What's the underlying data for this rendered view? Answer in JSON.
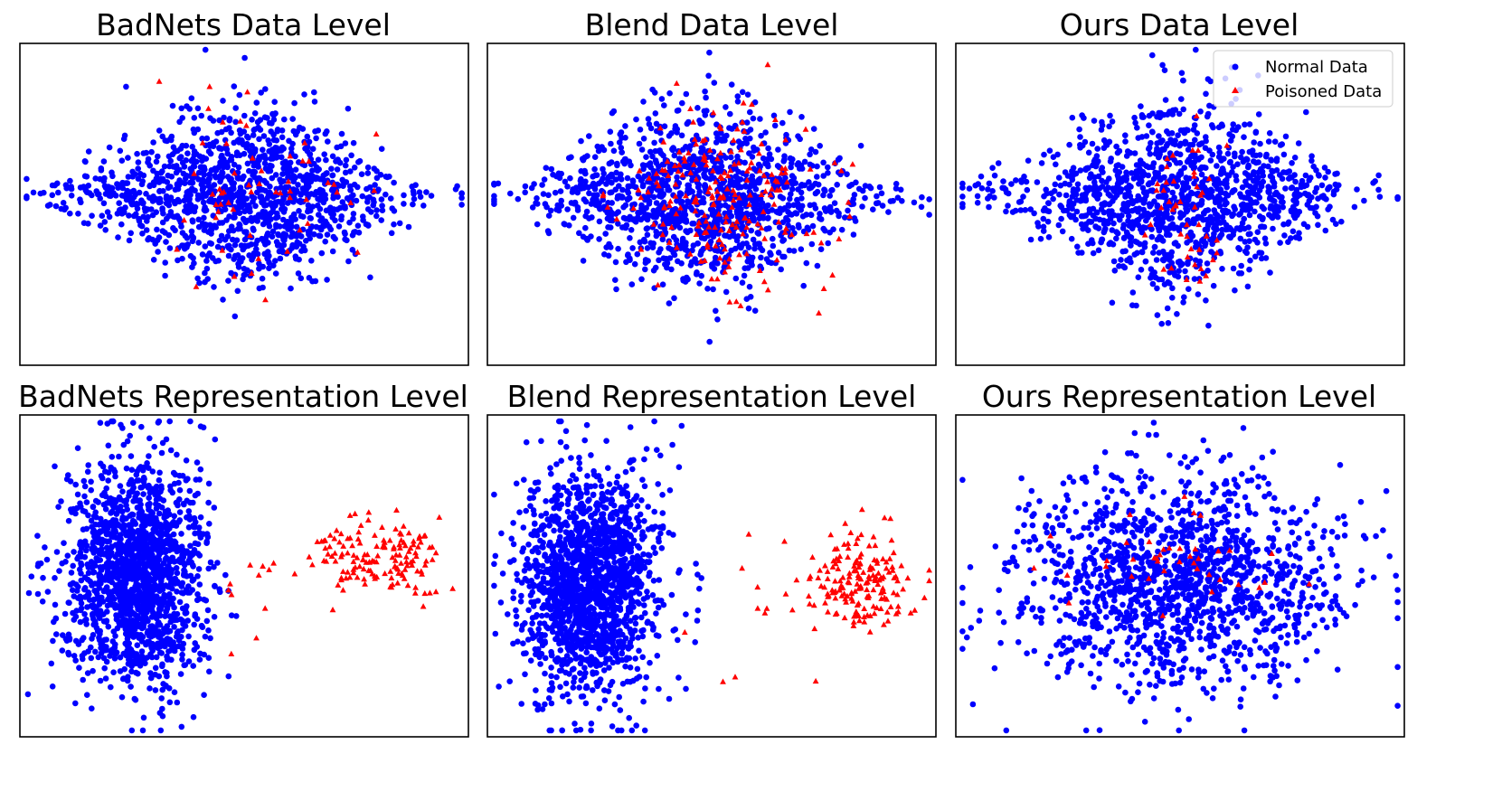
{
  "chart_data": [
    {
      "type": "scatter",
      "title": "BadNets Data Level",
      "xlabel": "",
      "ylabel": "",
      "axes_visible": false,
      "normal": {
        "count": 1300,
        "cx": 0.5,
        "cy": 0.47,
        "sx": 0.17,
        "sy": 0.155,
        "shape": "diamond"
      },
      "poisoned": {
        "count": 55,
        "cx": 0.52,
        "cy": 0.46,
        "sx": 0.12,
        "sy": 0.14
      }
    },
    {
      "type": "scatter",
      "title": "Blend Data Level",
      "xlabel": "",
      "ylabel": "",
      "axes_visible": false,
      "normal": {
        "count": 1300,
        "cx": 0.48,
        "cy": 0.48,
        "sx": 0.17,
        "sy": 0.16,
        "shape": "diamond"
      },
      "poisoned": {
        "count": 200,
        "cx": 0.52,
        "cy": 0.47,
        "sx": 0.12,
        "sy": 0.13
      }
    },
    {
      "type": "scatter",
      "title": "Ours Data Level",
      "xlabel": "",
      "ylabel": "",
      "axes_visible": false,
      "legend": {
        "placement": "top-right",
        "entries": [
          "Normal Data",
          "Poisoned Data"
        ]
      },
      "normal": {
        "count": 1300,
        "cx": 0.5,
        "cy": 0.47,
        "sx": 0.17,
        "sy": 0.155,
        "shape": "diamond"
      },
      "poisoned": {
        "count": 45,
        "cx": 0.51,
        "cy": 0.52,
        "sx": 0.05,
        "sy": 0.13
      }
    },
    {
      "type": "scatter",
      "title": "BadNets Representation Level",
      "xlabel": "",
      "ylabel": "",
      "axes_visible": false,
      "normal": {
        "count": 1600,
        "cx": 0.26,
        "cy": 0.5,
        "sx": 0.075,
        "sy": 0.17,
        "shape": "ellipse"
      },
      "poisoned": {
        "count": 150,
        "cx": 0.8,
        "cy": 0.44,
        "sx": 0.07,
        "sy": 0.065
      },
      "poisoned_outliers": {
        "count": 12,
        "cx": 0.56,
        "cy": 0.58,
        "sx": 0.06,
        "sy": 0.12
      }
    },
    {
      "type": "scatter",
      "title": "Blend Representation Level",
      "xlabel": "",
      "ylabel": "",
      "axes_visible": false,
      "normal": {
        "count": 1600,
        "cx": 0.23,
        "cy": 0.52,
        "sx": 0.075,
        "sy": 0.17,
        "shape": "ellipse"
      },
      "poisoned": {
        "count": 170,
        "cx": 0.84,
        "cy": 0.51,
        "sx": 0.055,
        "sy": 0.075
      },
      "poisoned_outliers": {
        "count": 18,
        "cx": 0.64,
        "cy": 0.6,
        "sx": 0.09,
        "sy": 0.12
      }
    },
    {
      "type": "scatter",
      "title": "Ours Representation Level",
      "xlabel": "",
      "ylabel": "",
      "axes_visible": false,
      "normal": {
        "count": 1400,
        "cx": 0.5,
        "cy": 0.51,
        "sx": 0.18,
        "sy": 0.16,
        "shape": "ellipse"
      },
      "poisoned": {
        "count": 40,
        "cx": 0.51,
        "cy": 0.47,
        "sx": 0.12,
        "sy": 0.07
      }
    }
  ],
  "colors": {
    "normal": "#0000ff",
    "poisoned": "#ff0000",
    "frame": "#000000"
  }
}
